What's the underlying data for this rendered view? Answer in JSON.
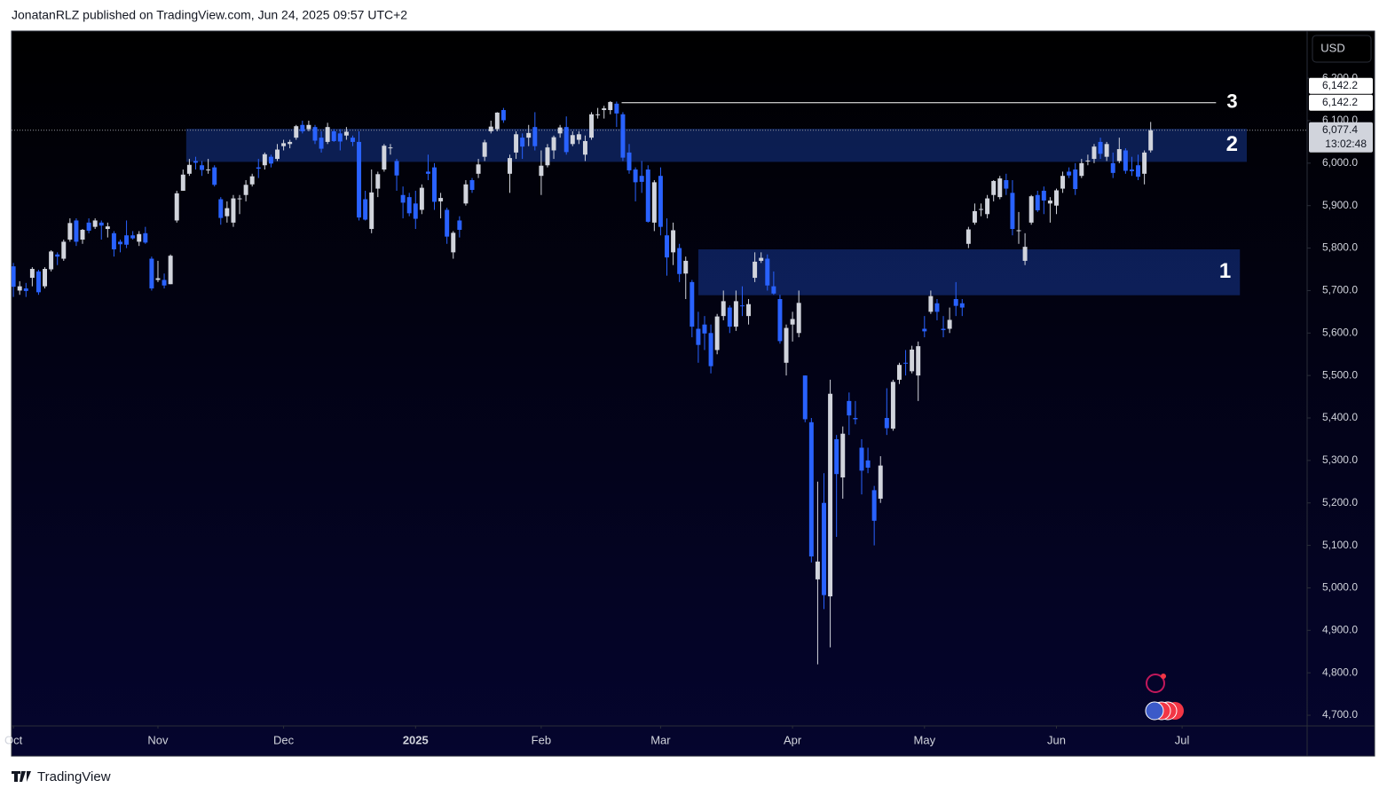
{
  "header": {
    "text": "JonatanRLZ published on TradingView.com, Jun 24, 2025 09:57 UTC+2"
  },
  "footer": {
    "brand": "TradingView"
  },
  "chart_data": {
    "type": "candlestick",
    "currency": "USD",
    "up_color": "#d1d4dc",
    "down_color": "#2962ff",
    "grid": false,
    "ylim": [
      4675,
      6311
    ],
    "xlim": [
      -0.3,
      205.9
    ],
    "yticks": [
      {
        "value": 4700,
        "label": "4,700.0"
      },
      {
        "value": 4800,
        "label": "4,800.0"
      },
      {
        "value": 4900,
        "label": "4,900.0"
      },
      {
        "value": 5000,
        "label": "5,000.0"
      },
      {
        "value": 5100,
        "label": "5,100.0"
      },
      {
        "value": 5200,
        "label": "5,200.0"
      },
      {
        "value": 5300,
        "label": "5,300.0"
      },
      {
        "value": 5400,
        "label": "5,400.0"
      },
      {
        "value": 5500,
        "label": "5,500.0"
      },
      {
        "value": 5600,
        "label": "5,600.0"
      },
      {
        "value": 5700,
        "label": "5,700.0"
      },
      {
        "value": 5800,
        "label": "5,800.0"
      },
      {
        "value": 5900,
        "label": "5,900.0"
      },
      {
        "value": 6000,
        "label": "6,000.0"
      },
      {
        "value": 6100,
        "label": "6,100.0"
      },
      {
        "value": 6200,
        "label": "6,200.0"
      }
    ],
    "xticks": [
      {
        "value": 0,
        "label": "Oct"
      },
      {
        "value": 23,
        "label": "Nov"
      },
      {
        "value": 43,
        "label": "Dec"
      },
      {
        "value": 64,
        "label": "2025"
      },
      {
        "value": 84,
        "label": "Feb"
      },
      {
        "value": 103,
        "label": "Mar"
      },
      {
        "value": 124,
        "label": "Apr"
      },
      {
        "value": 145,
        "label": "May"
      },
      {
        "value": 166,
        "label": "Jun"
      },
      {
        "value": 186,
        "label": "Jul"
      }
    ],
    "last_price": {
      "value": 6077.4,
      "label": "6,077.4",
      "countdown": "13:02:48"
    },
    "level": {
      "label": "3",
      "value": 6142.2,
      "value_label": "6,142.2",
      "from": 96.8,
      "to": 191.4
    },
    "zones": [
      {
        "label": "2",
        "low": 6003,
        "high": 6081,
        "from": 27.5,
        "to": 196.3
      },
      {
        "label": "1",
        "low": 5689,
        "high": 5797,
        "from": 109,
        "to": 195.2
      }
    ],
    "candles": [
      [
        5757,
        5765,
        5685,
        5709
      ],
      [
        5700,
        5722,
        5690,
        5710
      ],
      [
        5705,
        5718,
        5685,
        5699
      ],
      [
        5730,
        5755,
        5710,
        5751
      ],
      [
        5745,
        5749,
        5690,
        5696
      ],
      [
        5710,
        5755,
        5705,
        5751
      ],
      [
        5750,
        5795,
        5745,
        5792
      ],
      [
        5785,
        5790,
        5760,
        5780
      ],
      [
        5775,
        5820,
        5770,
        5815
      ],
      [
        5820,
        5870,
        5815,
        5859
      ],
      [
        5865,
        5870,
        5805,
        5815
      ],
      [
        5820,
        5845,
        5810,
        5843
      ],
      [
        5860,
        5870,
        5835,
        5841
      ],
      [
        5850,
        5870,
        5845,
        5865
      ],
      [
        5860,
        5865,
        5820,
        5853
      ],
      [
        5845,
        5860,
        5825,
        5851
      ],
      [
        5835,
        5840,
        5780,
        5797
      ],
      [
        5815,
        5820,
        5790,
        5809
      ],
      [
        5830,
        5865,
        5800,
        5808
      ],
      [
        5830,
        5840,
        5820,
        5823
      ],
      [
        5815,
        5840,
        5805,
        5833
      ],
      [
        5835,
        5850,
        5810,
        5813
      ],
      [
        5775,
        5780,
        5700,
        5705
      ],
      [
        5725,
        5770,
        5720,
        5729
      ],
      [
        5725,
        5740,
        5705,
        5712
      ],
      [
        5715,
        5785,
        5715,
        5782
      ],
      [
        5865,
        5935,
        5860,
        5929
      ],
      [
        5935,
        5985,
        5935,
        5973
      ],
      [
        5975,
        6010,
        5970,
        5996
      ],
      [
        6005,
        6015,
        5985,
        6001
      ],
      [
        5995,
        6005,
        5970,
        5984
      ],
      [
        5985,
        6010,
        5975,
        5985
      ],
      [
        5990,
        5995,
        5945,
        5949
      ],
      [
        5915,
        5920,
        5855,
        5871
      ],
      [
        5875,
        5910,
        5860,
        5894
      ],
      [
        5860,
        5925,
        5850,
        5917
      ],
      [
        5915,
        5925,
        5880,
        5917
      ],
      [
        5925,
        5960,
        5910,
        5949
      ],
      [
        5950,
        5975,
        5945,
        5969
      ],
      [
        5990,
        6010,
        5965,
        5987
      ],
      [
        5995,
        6025,
        5985,
        6021
      ],
      [
        6015,
        6020,
        5990,
        5999
      ],
      [
        6010,
        6045,
        6005,
        6032
      ],
      [
        6040,
        6055,
        6030,
        6047
      ],
      [
        6045,
        6055,
        6035,
        6050
      ],
      [
        6060,
        6090,
        6055,
        6087
      ],
      [
        6090,
        6100,
        6070,
        6075
      ],
      [
        6080,
        6100,
        6075,
        6090
      ],
      [
        6085,
        6090,
        6045,
        6053
      ],
      [
        6060,
        6075,
        6025,
        6034
      ],
      [
        6050,
        6095,
        6045,
        6085
      ],
      [
        6075,
        6080,
        6050,
        6052
      ],
      [
        6070,
        6080,
        6030,
        6051
      ],
      [
        6065,
        6085,
        6055,
        6074
      ],
      [
        6060,
        6065,
        6040,
        6050
      ],
      [
        6050,
        6075,
        5865,
        5872
      ],
      [
        5915,
        5935,
        5865,
        5867
      ],
      [
        5845,
        5985,
        5835,
        5931
      ],
      [
        5940,
        5980,
        5920,
        5974
      ],
      [
        5985,
        6045,
        5980,
        6041
      ],
      [
        6035,
        6045,
        6020,
        6037
      ],
      [
        6005,
        6010,
        5935,
        5971
      ],
      [
        5925,
        5945,
        5870,
        5907
      ],
      [
        5920,
        5930,
        5875,
        5882
      ],
      [
        5905,
        5935,
        5845,
        5869
      ],
      [
        5890,
        5950,
        5880,
        5942
      ],
      [
        5980,
        6020,
        5960,
        5975
      ],
      [
        5990,
        6000,
        5890,
        5909
      ],
      [
        5910,
        5930,
        5870,
        5918
      ],
      [
        5890,
        5895,
        5810,
        5827
      ],
      [
        5790,
        5840,
        5775,
        5836
      ],
      [
        5865,
        5875,
        5825,
        5843
      ],
      [
        5905,
        5960,
        5900,
        5950
      ],
      [
        5960,
        5965,
        5930,
        5937
      ],
      [
        5975,
        6010,
        5965,
        5997
      ],
      [
        6015,
        6055,
        6005,
        6049
      ],
      [
        6075,
        6100,
        6070,
        6086
      ],
      [
        6080,
        6120,
        6075,
        6119
      ],
      [
        6125,
        6130,
        6095,
        6101
      ],
      [
        5975,
        6020,
        5930,
        6012
      ],
      [
        6025,
        6075,
        6010,
        6068
      ],
      [
        6060,
        6070,
        6010,
        6039
      ],
      [
        6060,
        6090,
        6040,
        6071
      ],
      [
        6085,
        6120,
        6030,
        6040
      ],
      [
        5970,
        6030,
        5925,
        5994
      ],
      [
        5995,
        6045,
        5990,
        6037
      ],
      [
        6030,
        6065,
        6010,
        6061
      ],
      [
        6070,
        6090,
        6060,
        6084
      ],
      [
        6085,
        6110,
        6020,
        6026
      ],
      [
        6045,
        6075,
        6040,
        6066
      ],
      [
        6055,
        6075,
        6045,
        6068
      ],
      [
        6020,
        6065,
        6005,
        6052
      ],
      [
        6060,
        6120,
        6055,
        6115
      ],
      [
        6115,
        6130,
        6105,
        6115
      ],
      [
        6125,
        6135,
        6105,
        6129
      ],
      [
        6125,
        6146,
        6115,
        6144
      ],
      [
        6140,
        6145,
        6085,
        6117
      ],
      [
        6115,
        6120,
        6005,
        6013
      ],
      [
        6025,
        6045,
        5975,
        5983
      ],
      [
        5985,
        5990,
        5910,
        5955
      ],
      [
        5970,
        6005,
        5930,
        5956
      ],
      [
        5985,
        5995,
        5860,
        5862
      ],
      [
        5860,
        5960,
        5840,
        5955
      ],
      [
        5970,
        5990,
        5830,
        5850
      ],
      [
        5830,
        5870,
        5735,
        5778
      ],
      [
        5790,
        5860,
        5760,
        5842
      ],
      [
        5800,
        5810,
        5720,
        5739
      ],
      [
        5740,
        5780,
        5680,
        5770
      ],
      [
        5720,
        5725,
        5590,
        5615
      ],
      [
        5610,
        5650,
        5530,
        5572
      ],
      [
        5620,
        5640,
        5560,
        5599
      ],
      [
        5600,
        5620,
        5505,
        5522
      ],
      [
        5560,
        5645,
        5550,
        5639
      ],
      [
        5640,
        5700,
        5630,
        5675
      ],
      [
        5660,
        5665,
        5600,
        5615
      ],
      [
        5615,
        5700,
        5605,
        5675
      ],
      [
        5665,
        5710,
        5640,
        5663
      ],
      [
        5640,
        5680,
        5620,
        5668
      ],
      [
        5730,
        5790,
        5720,
        5768
      ],
      [
        5770,
        5790,
        5765,
        5777
      ],
      [
        5775,
        5785,
        5700,
        5712
      ],
      [
        5710,
        5745,
        5690,
        5693
      ],
      [
        5680,
        5690,
        5575,
        5581
      ],
      [
        5530,
        5620,
        5500,
        5612
      ],
      [
        5620,
        5650,
        5580,
        5633
      ],
      [
        5600,
        5700,
        5590,
        5671
      ],
      [
        5500,
        5500,
        5390,
        5397
      ],
      [
        5390,
        5400,
        5060,
        5074
      ],
      [
        5020,
        5250,
        4820,
        5062
      ],
      [
        5200,
        5270,
        4950,
        4983
      ],
      [
        4980,
        5490,
        4860,
        5457
      ],
      [
        5350,
        5360,
        5120,
        5268
      ],
      [
        5260,
        5380,
        5210,
        5363
      ],
      [
        5440,
        5460,
        5360,
        5406
      ],
      [
        5400,
        5440,
        5385,
        5397
      ],
      [
        5330,
        5350,
        5220,
        5276
      ],
      [
        5300,
        5330,
        5270,
        5283
      ],
      [
        5230,
        5240,
        5100,
        5158
      ],
      [
        5210,
        5310,
        5200,
        5288
      ],
      [
        5400,
        5470,
        5360,
        5376
      ],
      [
        5375,
        5490,
        5370,
        5485
      ],
      [
        5490,
        5530,
        5480,
        5525
      ],
      [
        5530,
        5560,
        5500,
        5529
      ],
      [
        5510,
        5570,
        5505,
        5561
      ],
      [
        5500,
        5580,
        5440,
        5569
      ],
      [
        5610,
        5640,
        5590,
        5604
      ],
      [
        5650,
        5700,
        5645,
        5687
      ],
      [
        5670,
        5680,
        5630,
        5650
      ],
      [
        5610,
        5640,
        5590,
        5607
      ],
      [
        5610,
        5660,
        5600,
        5631
      ],
      [
        5680,
        5720,
        5640,
        5664
      ],
      [
        5670,
        5680,
        5640,
        5660
      ],
      [
        5810,
        5850,
        5800,
        5844
      ],
      [
        5860,
        5905,
        5855,
        5887
      ],
      [
        5890,
        5905,
        5875,
        5892
      ],
      [
        5880,
        5925,
        5870,
        5917
      ],
      [
        5925,
        5960,
        5910,
        5958
      ],
      [
        5920,
        5970,
        5915,
        5964
      ],
      [
        5960,
        5975,
        5925,
        5940
      ],
      [
        5930,
        5960,
        5830,
        5845
      ],
      [
        5840,
        5885,
        5810,
        5842
      ],
      [
        5770,
        5835,
        5760,
        5803
      ],
      [
        5860,
        5925,
        5855,
        5922
      ],
      [
        5925,
        5935,
        5885,
        5889
      ],
      [
        5935,
        5945,
        5880,
        5912
      ],
      [
        5905,
        5920,
        5860,
        5912
      ],
      [
        5900,
        5940,
        5880,
        5936
      ],
      [
        5940,
        5980,
        5930,
        5970
      ],
      [
        5980,
        5990,
        5965,
        5971
      ],
      [
        5985,
        6000,
        5925,
        5939
      ],
      [
        5970,
        6010,
        5965,
        6000
      ],
      [
        6005,
        6020,
        5995,
        6006
      ],
      [
        6010,
        6045,
        6000,
        6039
      ],
      [
        6050,
        6060,
        6010,
        6022
      ],
      [
        6015,
        6050,
        6005,
        6045
      ],
      [
        6000,
        6025,
        5965,
        5977
      ],
      [
        6005,
        6060,
        6000,
        6033
      ],
      [
        6030,
        6035,
        5975,
        5982
      ],
      [
        5985,
        6015,
        5970,
        5981
      ],
      [
        5995,
        6020,
        5960,
        5968
      ],
      [
        5975,
        6030,
        5950,
        6025
      ],
      [
        6030,
        6097,
        6025,
        6077.4
      ]
    ]
  }
}
